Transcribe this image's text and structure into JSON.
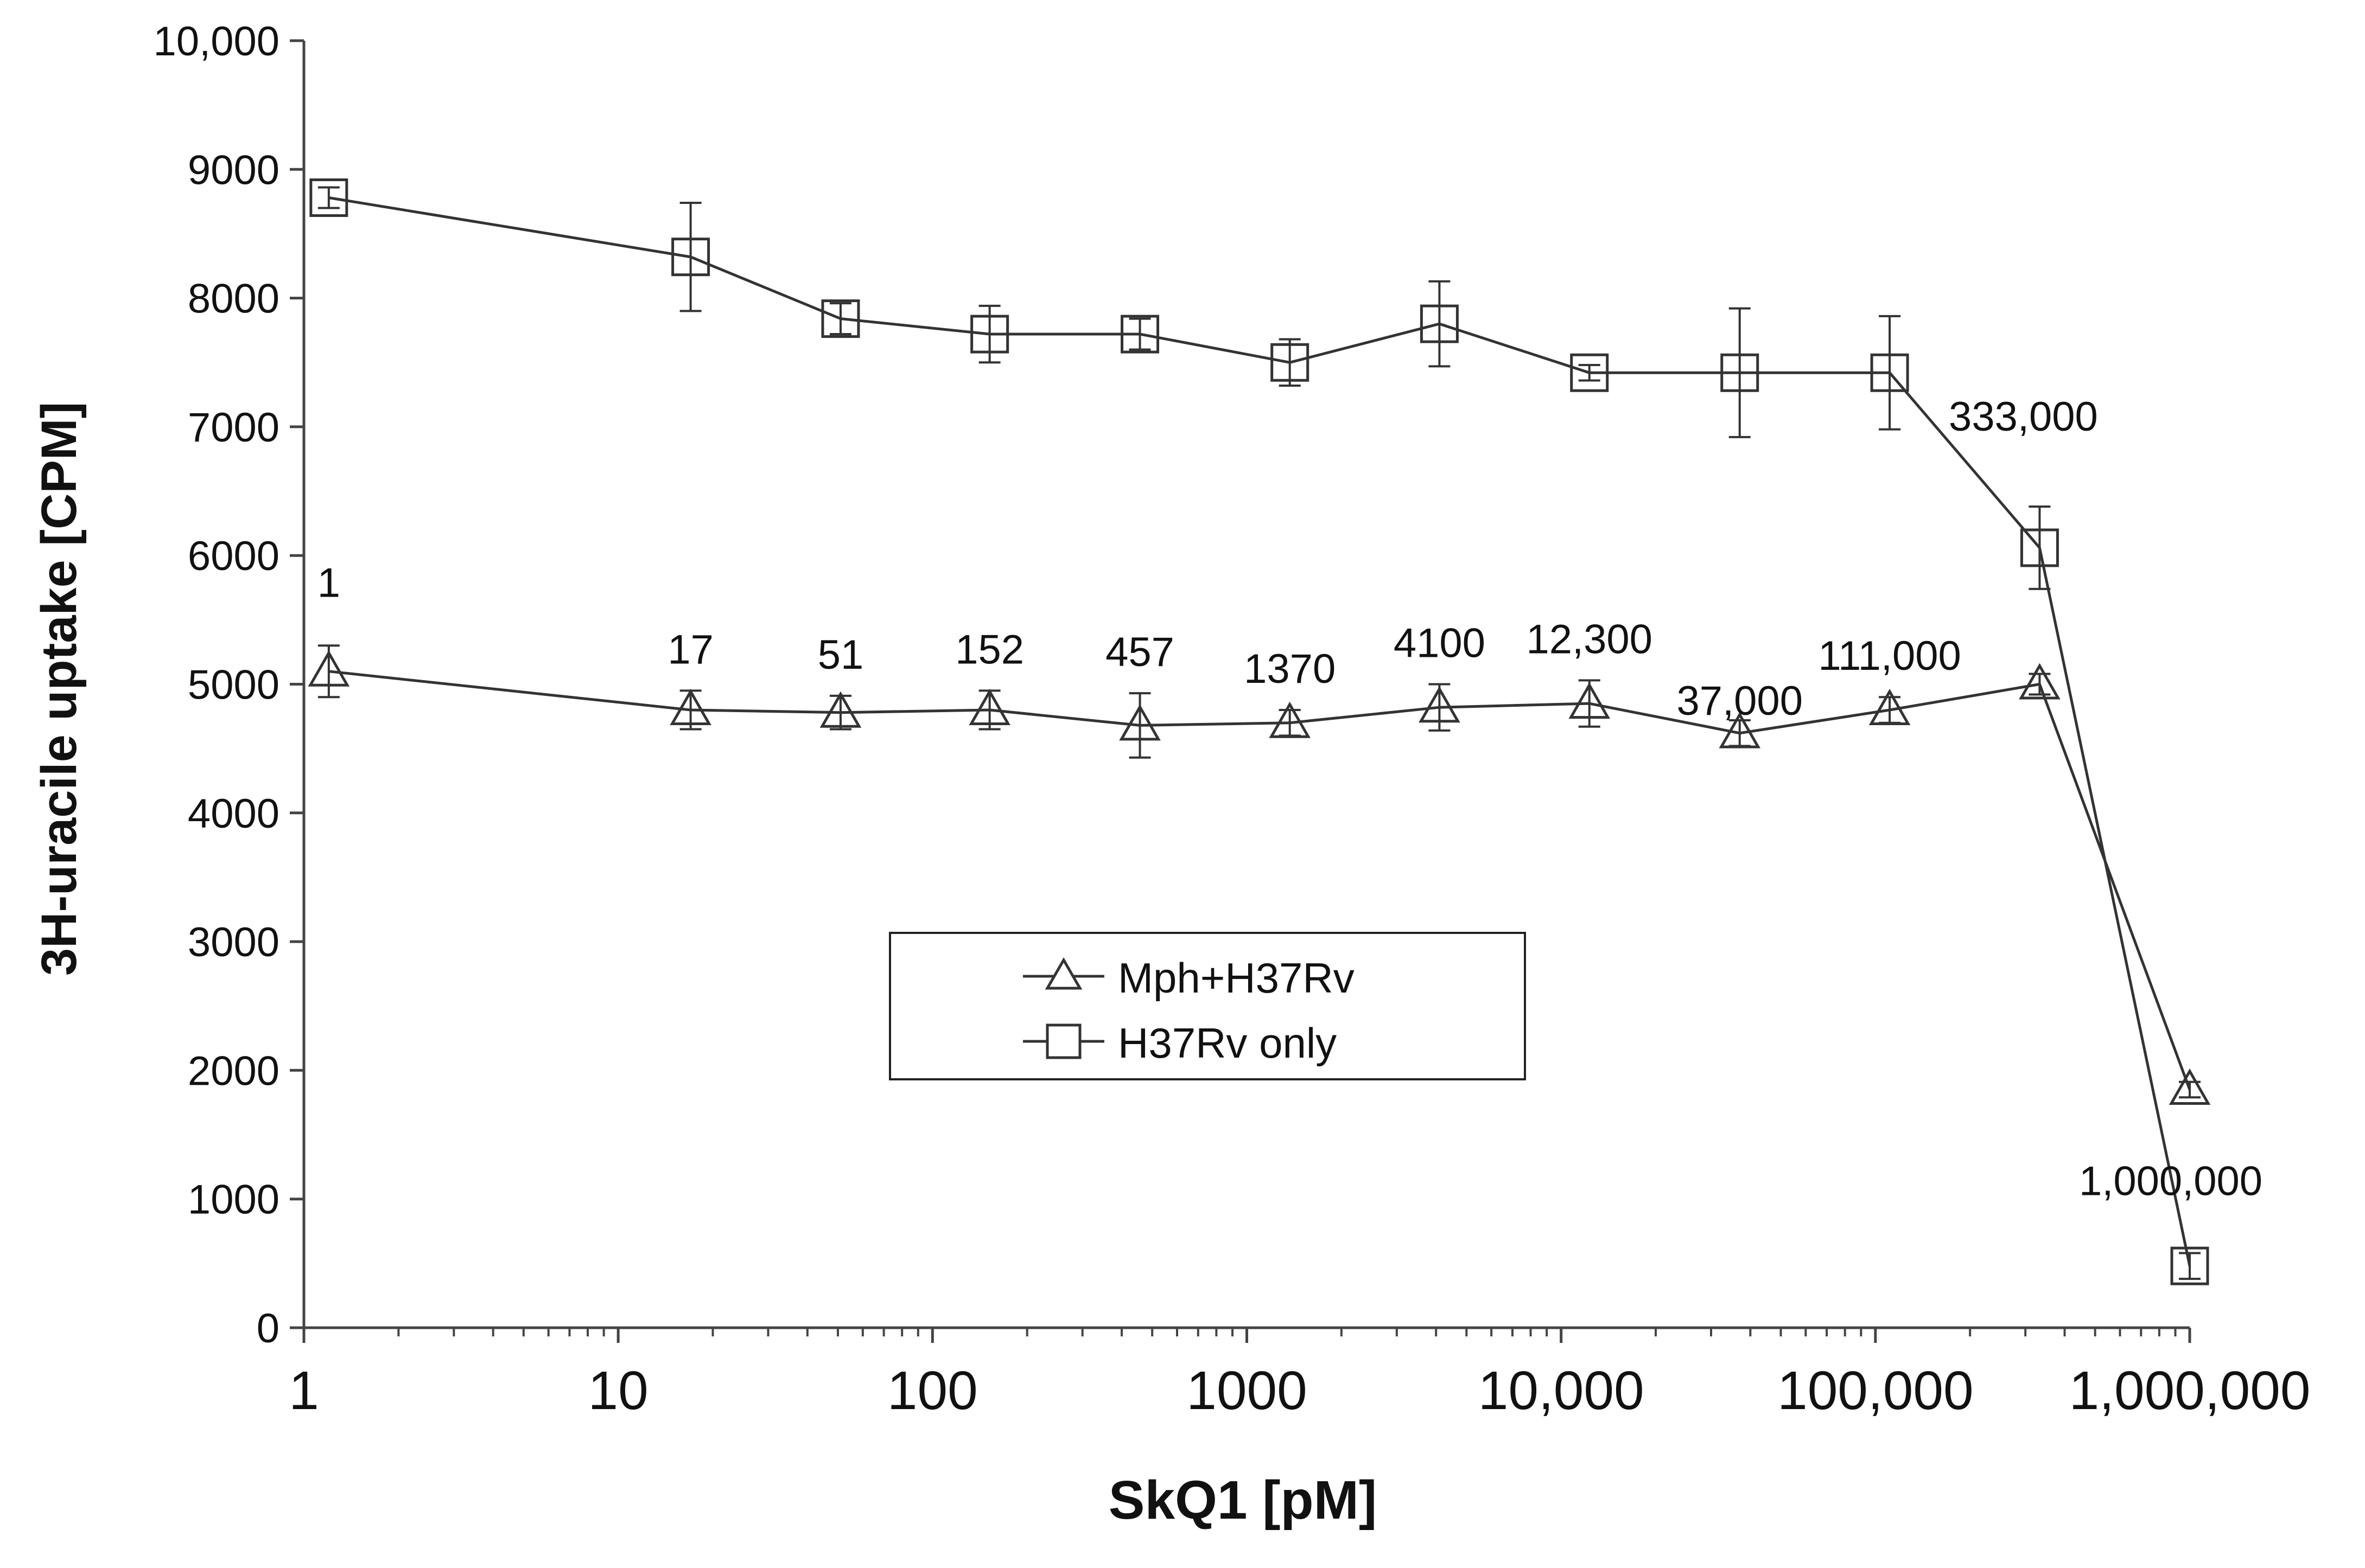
{
  "chart_data": {
    "type": "line",
    "title": "",
    "xlabel": "SkQ1 [pM]",
    "ylabel": "3H-uracile uptake [CPM]",
    "xscale": "log",
    "xlim": [
      1,
      1000000
    ],
    "ylim": [
      0,
      10000
    ],
    "x_tick_labels": [
      "1",
      "10",
      "100",
      "1000",
      "10,000",
      "100,000",
      "1,000,000"
    ],
    "y_tick_labels": [
      "0",
      "1000",
      "2000",
      "3000",
      "4000",
      "5000",
      "6000",
      "7000",
      "8000",
      "9000",
      "10,000"
    ],
    "legend_position": "center",
    "series": [
      {
        "name": "Mph+H37Rv",
        "marker": "triangle",
        "x": [
          1.2,
          17,
          51,
          152,
          457,
          1370,
          4100,
          12300,
          37000,
          111000,
          333000,
          1000000
        ],
        "y": [
          5100,
          4800,
          4780,
          4800,
          4680,
          4700,
          4820,
          4850,
          4620,
          4800,
          5000,
          1850
        ],
        "err": [
          200,
          150,
          130,
          150,
          250,
          100,
          180,
          180,
          100,
          100,
          80,
          60
        ]
      },
      {
        "name": "H37Rv only",
        "marker": "square",
        "x": [
          1.2,
          17,
          51,
          152,
          457,
          1370,
          4100,
          12300,
          37000,
          111000,
          333000,
          1000000
        ],
        "y": [
          8780,
          8320,
          7840,
          7720,
          7720,
          7500,
          7800,
          7420,
          7420,
          7420,
          6060,
          480
        ],
        "err": [
          80,
          420,
          120,
          220,
          120,
          180,
          330,
          60,
          500,
          440,
          320,
          100
        ]
      }
    ],
    "annotations": [
      "1",
      "17",
      "51",
      "152",
      "457",
      "1370",
      "4100",
      "12,300",
      "37,000",
      "111,000",
      "333,000",
      "1,000,000"
    ]
  }
}
